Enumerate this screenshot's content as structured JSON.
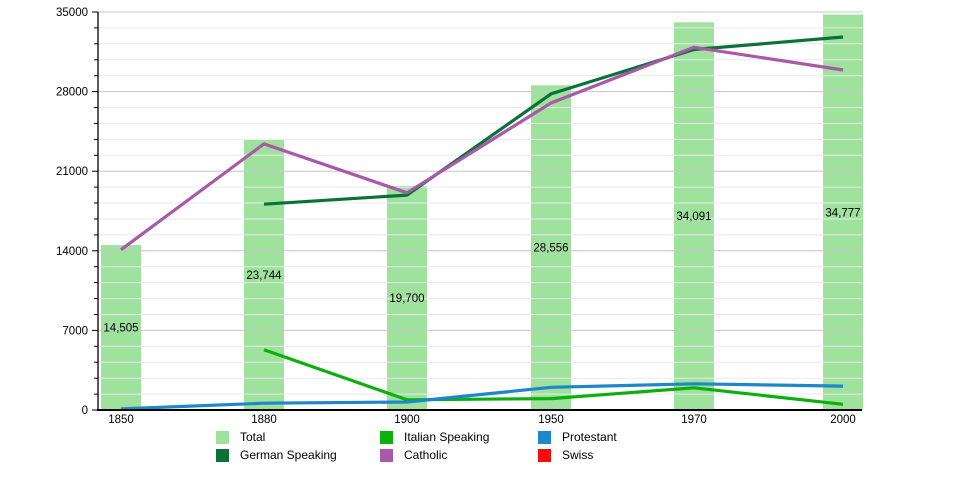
{
  "chart_data": {
    "type": "bar+line",
    "title": "",
    "xlabel": "",
    "ylabel": "",
    "categories": [
      "1850",
      "1880",
      "1900",
      "1950",
      "1970",
      "2000"
    ],
    "bars": {
      "name": "Total",
      "color": "#9ee29e",
      "values": [
        14505,
        23744,
        19700,
        28556,
        34091,
        34777
      ],
      "labels": [
        "14,505",
        "23,744",
        "19,700",
        "28,556",
        "34,091",
        "34,777"
      ]
    },
    "series": [
      {
        "name": "German Speaking",
        "color": "#0a7239",
        "values": [
          null,
          18100,
          18900,
          27800,
          31700,
          32800
        ]
      },
      {
        "name": "Italian Speaking",
        "color": "#0cb00c",
        "values": [
          null,
          5300,
          900,
          1000,
          1950,
          500
        ]
      },
      {
        "name": "Catholic",
        "color": "#a859a8",
        "values": [
          14100,
          23400,
          19100,
          27000,
          31900,
          29900
        ]
      },
      {
        "name": "Protestant",
        "color": "#1e87c9",
        "values": [
          100,
          600,
          700,
          2000,
          2300,
          2100
        ]
      },
      {
        "name": "Swiss",
        "color": "#f60c0c",
        "values": [
          null,
          null,
          null,
          null,
          null,
          null
        ]
      }
    ],
    "y_axis": {
      "min": 0,
      "max": 35000,
      "major_step": 7000,
      "minor_step": 1400,
      "tick_labels": [
        "0",
        "7000",
        "14000",
        "21000",
        "28000",
        "35000"
      ]
    },
    "grid": "horizontal-major-and-minor",
    "legend_position": "bottom"
  },
  "legend": {
    "items": [
      {
        "label": "Total",
        "color": "#9ee29e"
      },
      {
        "label": "German Speaking",
        "color": "#0a7239"
      },
      {
        "label": "Italian Speaking",
        "color": "#0cb00c"
      },
      {
        "label": "Catholic",
        "color": "#a859a8"
      },
      {
        "label": "Protestant",
        "color": "#1e87c9"
      },
      {
        "label": "Swiss",
        "color": "#f60c0c"
      }
    ]
  }
}
